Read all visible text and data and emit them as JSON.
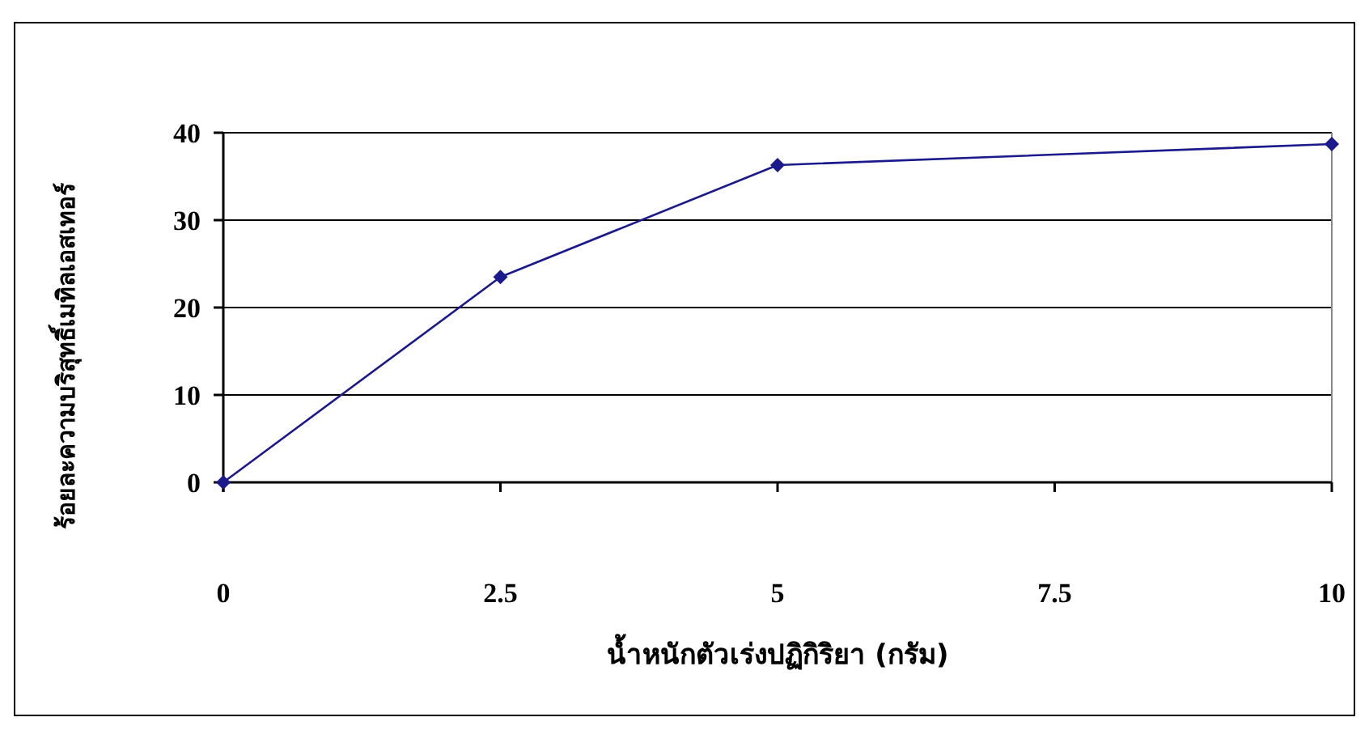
{
  "chart_data": {
    "type": "line",
    "xlabel": "น้ำหนักตัวเร่งปฏิกิริยา (กรัม)",
    "ylabel": "ร้อยละความบริสุทธิ์เมทิลเอสเทอร์",
    "x": [
      0,
      2.5,
      5,
      10
    ],
    "series": [
      {
        "color": "#1a1a8c",
        "values": [
          0,
          23.5,
          36.3,
          38.7
        ]
      }
    ],
    "xlim": [
      0,
      10
    ],
    "xticks": [
      0,
      2.5,
      5,
      7.5,
      10
    ],
    "ylim": [
      0,
      40
    ],
    "yticks": [
      0,
      10,
      20,
      30,
      40
    ],
    "grid": "y",
    "marker": "diamond",
    "line_style": "solid"
  }
}
